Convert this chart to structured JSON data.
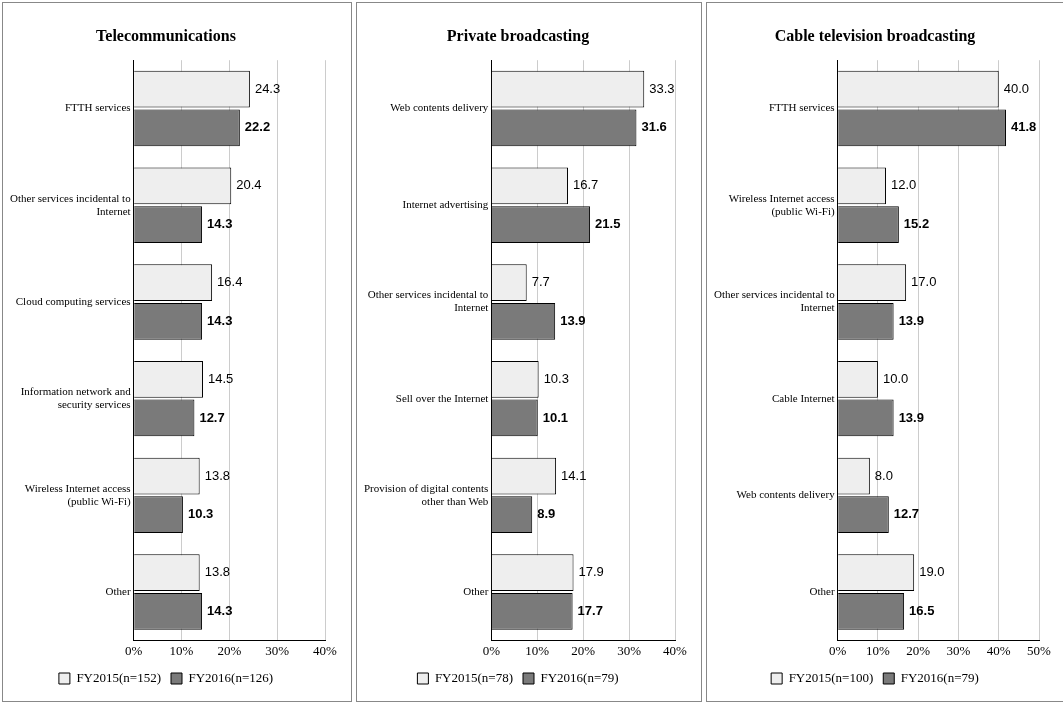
{
  "chart_data": [
    {
      "type": "bar",
      "orientation": "horizontal",
      "title": "Telecommunications",
      "categories": [
        "FTTH services",
        "Other services incidental to Internet",
        "Cloud computing services",
        "Information network and security services",
        "Wireless Internet access (public Wi-Fi)",
        "Other"
      ],
      "series": [
        {
          "name": "FY2015(n=152)",
          "color": "#eeeeee",
          "values": [
            24.3,
            20.4,
            16.4,
            14.5,
            13.8,
            13.8
          ],
          "value_labels": [
            "24.3",
            "20.4",
            "16.4",
            "14.5",
            "13.8",
            "13.8"
          ]
        },
        {
          "name": "FY2016(n=126)",
          "color": "#7a7a7a",
          "values": [
            22.2,
            14.3,
            14.3,
            12.7,
            10.3,
            14.3
          ],
          "value_labels": [
            "22.2",
            "14.3",
            "14.3",
            "12.7",
            "10.3",
            "14.3"
          ]
        }
      ],
      "xlim": [
        0,
        40
      ],
      "xticks": [
        {
          "value": 0,
          "label": "0%"
        },
        {
          "value": 10,
          "label": "10%"
        },
        {
          "value": 20,
          "label": "20%"
        },
        {
          "value": 30,
          "label": "30%"
        },
        {
          "value": 40,
          "label": "40%"
        }
      ],
      "grid": "x",
      "legend": "bottom"
    },
    {
      "type": "bar",
      "orientation": "horizontal",
      "title": "Private broadcasting",
      "categories": [
        "Web contents delivery",
        "Internet advertising",
        "Other services incidental to Internet",
        "Sell over the Internet",
        "Provision of digital contents other than Web",
        "Other"
      ],
      "series": [
        {
          "name": "FY2015(n=78)",
          "color": "#eeeeee",
          "values": [
            33.3,
            16.7,
            7.7,
            10.3,
            14.1,
            17.9
          ],
          "value_labels": [
            "33.3",
            "16.7",
            "7.7",
            "10.3",
            "14.1",
            "17.9"
          ]
        },
        {
          "name": "FY2016(n=79)",
          "color": "#7a7a7a",
          "values": [
            31.6,
            21.5,
            13.9,
            10.1,
            8.9,
            17.7
          ],
          "value_labels": [
            "31.6",
            "21.5",
            "13.9",
            "10.1",
            "8.9",
            "17.7"
          ]
        }
      ],
      "xlim": [
        0,
        40
      ],
      "xticks": [
        {
          "value": 0,
          "label": "0%"
        },
        {
          "value": 10,
          "label": "10%"
        },
        {
          "value": 20,
          "label": "20%"
        },
        {
          "value": 30,
          "label": "30%"
        },
        {
          "value": 40,
          "label": "40%"
        }
      ],
      "grid": "x",
      "legend": "bottom"
    },
    {
      "type": "bar",
      "orientation": "horizontal",
      "title": "Cable television broadcasting",
      "categories": [
        "FTTH services",
        "Wireless Internet access (public Wi-Fi)",
        "Other services incidental to Internet",
        "Cable Internet",
        "Web contents delivery",
        "Other"
      ],
      "series": [
        {
          "name": "FY2015(n=100)",
          "color": "#eeeeee",
          "values": [
            40.0,
            12.0,
            17.0,
            10.0,
            8.0,
            19.0
          ],
          "value_labels": [
            "40.0",
            "12.0",
            "17.0",
            "10.0",
            "8.0",
            "19.0"
          ]
        },
        {
          "name": "FY2016(n=79)",
          "color": "#7a7a7a",
          "values": [
            41.8,
            15.2,
            13.9,
            13.9,
            12.7,
            16.5
          ],
          "value_labels": [
            "41.8",
            "15.2",
            "13.9",
            "13.9",
            "12.7",
            "16.5"
          ]
        }
      ],
      "xlim": [
        0,
        50
      ],
      "xticks": [
        {
          "value": 0,
          "label": "0%"
        },
        {
          "value": 10,
          "label": "10%"
        },
        {
          "value": 20,
          "label": "20%"
        },
        {
          "value": 30,
          "label": "30%"
        },
        {
          "value": 40,
          "label": "40%"
        },
        {
          "value": 50,
          "label": "50%"
        }
      ],
      "grid": "x",
      "legend": "bottom"
    }
  ]
}
